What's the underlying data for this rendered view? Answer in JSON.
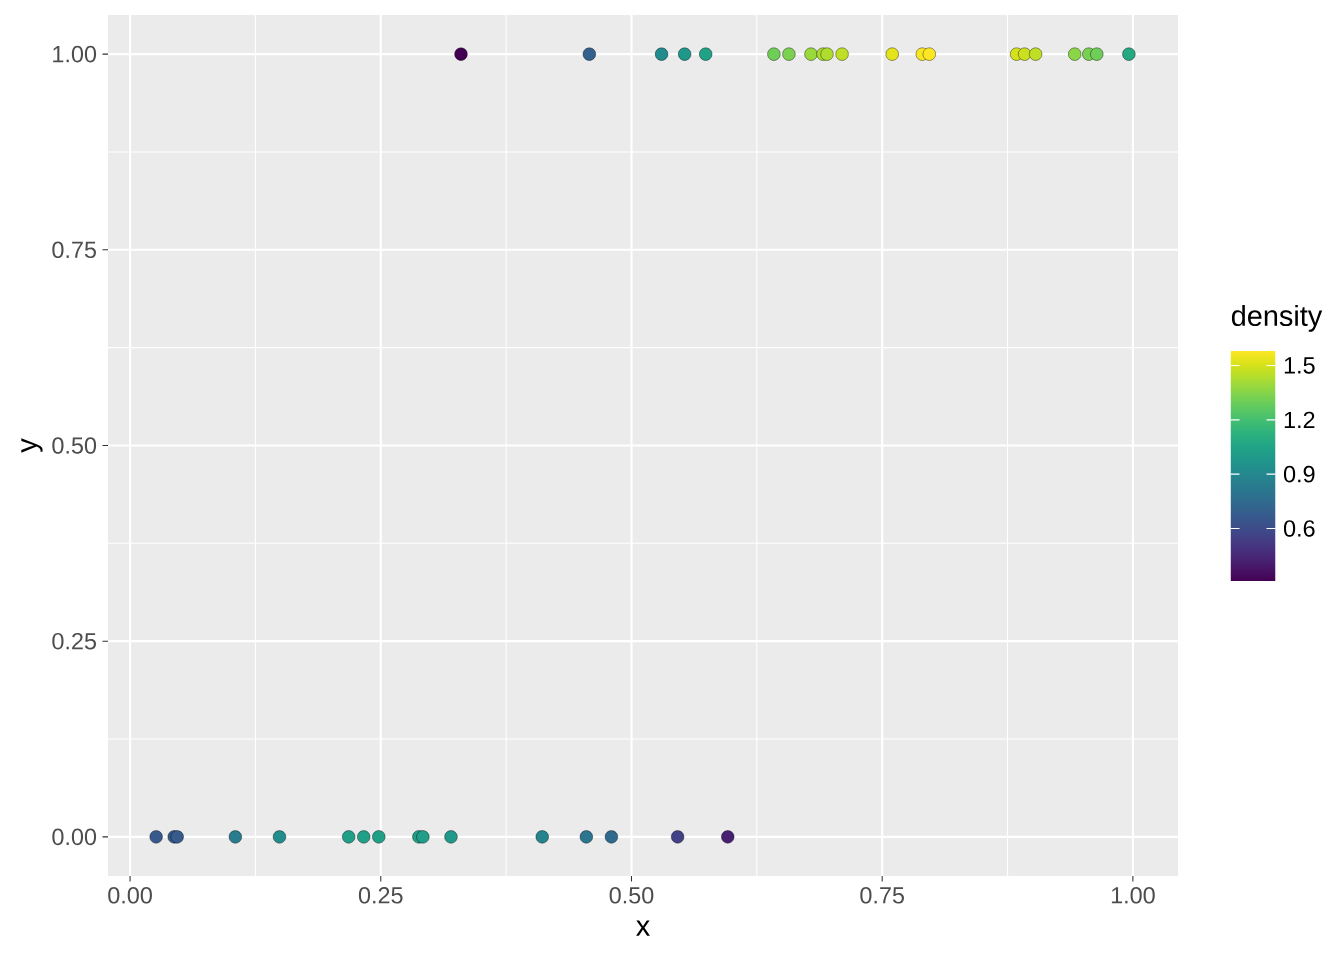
{
  "chart_data": {
    "type": "scatter",
    "xlabel": "x",
    "ylabel": "y",
    "clabel": "density",
    "x": [
      0.026,
      0.044,
      0.047,
      0.105,
      0.149,
      0.218,
      0.233,
      0.248,
      0.288,
      0.292,
      0.32,
      0.411,
      0.455,
      0.48,
      0.546,
      0.596,
      0.33,
      0.458,
      0.53,
      0.553,
      0.574,
      0.642,
      0.657,
      0.679,
      0.691,
      0.695,
      0.71,
      0.76,
      0.79,
      0.797,
      0.884,
      0.892,
      0.903,
      0.942,
      0.956,
      0.964,
      0.996
    ],
    "values": [
      0,
      0,
      0,
      0,
      0,
      0,
      0,
      0,
      0,
      0,
      0,
      0,
      0,
      0,
      0,
      0,
      1,
      1,
      1,
      1,
      1,
      1,
      1,
      1,
      1,
      1,
      1,
      1,
      1,
      1,
      1,
      1,
      1,
      1,
      1,
      1,
      1
    ],
    "cvalues": [
      0.66,
      0.67,
      0.67,
      0.84,
      0.93,
      1.02,
      1.03,
      1.03,
      1.02,
      1.02,
      0.99,
      0.88,
      0.8,
      0.74,
      0.55,
      0.42,
      0.31,
      0.7,
      0.92,
      0.98,
      1.04,
      1.3,
      1.33,
      1.39,
      1.42,
      1.43,
      1.46,
      1.53,
      1.57,
      1.58,
      1.5,
      1.48,
      1.46,
      1.36,
      1.32,
      1.3,
      1.08
    ],
    "xlim": [
      -0.022,
      1.045
    ],
    "ylim": [
      -0.05,
      1.05
    ],
    "xticks": [
      {
        "value": 0,
        "label": "0.00"
      },
      {
        "value": 0.25,
        "label": "0.25"
      },
      {
        "value": 0.5,
        "label": "0.50"
      },
      {
        "value": 0.75,
        "label": "0.75"
      },
      {
        "value": 1,
        "label": "1.00"
      }
    ],
    "yticks": [
      {
        "value": 0,
        "label": "0.00"
      },
      {
        "value": 0.25,
        "label": "0.25"
      },
      {
        "value": 0.5,
        "label": "0.50"
      },
      {
        "value": 0.75,
        "label": "0.75"
      },
      {
        "value": 1,
        "label": "1.00"
      }
    ],
    "clim": [
      0.31,
      1.58
    ],
    "cticks": [
      0.6,
      0.9,
      1.2,
      1.5
    ],
    "grid": true,
    "marker": "circle"
  }
}
